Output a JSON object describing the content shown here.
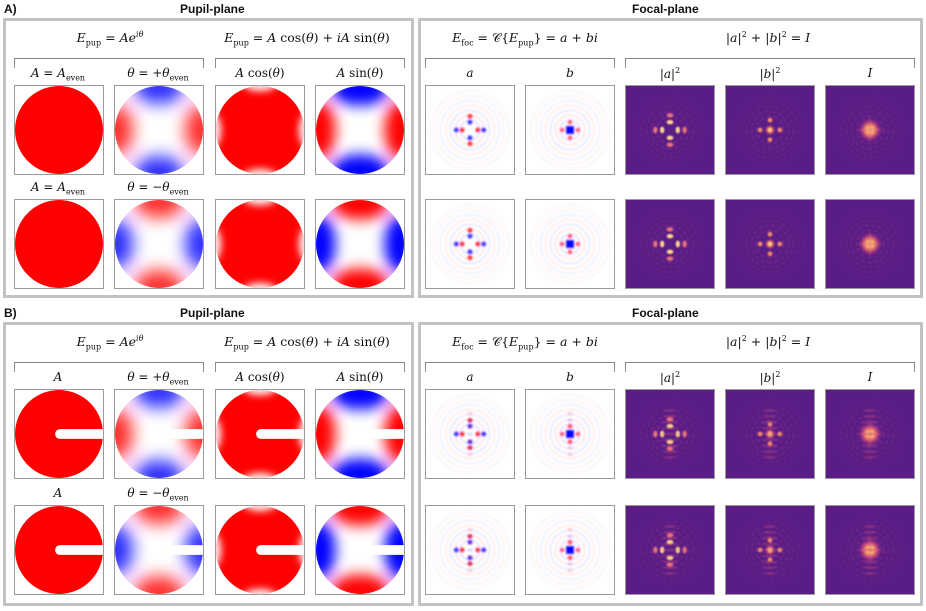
{
  "panels": [
    {
      "letter": "A)",
      "pupil_title": "Pupil-plane",
      "focal_title": "Focal-plane",
      "pupil_eq_left": "E_pup = Ae^{iθ}",
      "pupil_eq_right": "E_pup = A cos(θ) + iA sin(θ)",
      "focal_eq_left": "E_foc = C{E_pup} = a + bi",
      "focal_eq_right": "|a|² + |b|² = I",
      "row_labels": [
        [
          "A = A_even",
          "θ = +θ_even",
          "A cos(θ)",
          "A sin(θ)",
          "a",
          "b",
          "|a|²",
          "|b|²",
          "I"
        ],
        [
          "A = A_even",
          "θ = −θ_even"
        ]
      ],
      "aperture": "even"
    },
    {
      "letter": "B)",
      "pupil_title": "Pupil-plane",
      "focal_title": "Focal-plane",
      "pupil_eq_left": "E_pup = Ae^{iθ}",
      "pupil_eq_right": "E_pup = A cos(θ) + iA sin(θ)",
      "focal_eq_left": "E_foc = C{E_pup} = a + bi",
      "focal_eq_right": "|a|² + |b|² = I",
      "row_labels": [
        [
          "A",
          "θ = +θ_even",
          "A cos(θ)",
          "A sin(θ)",
          "a",
          "b",
          "|a|²",
          "|b|²",
          "I"
        ],
        [
          "A",
          "θ = −θ_even"
        ]
      ],
      "aperture": "slot"
    }
  ],
  "colors": {
    "positive": "#ff0000",
    "negative": "#0000ff",
    "intensity_bg": "#5a1d86",
    "intensity_peak": "#fcfdbf",
    "frame": "#c2c2c2"
  }
}
